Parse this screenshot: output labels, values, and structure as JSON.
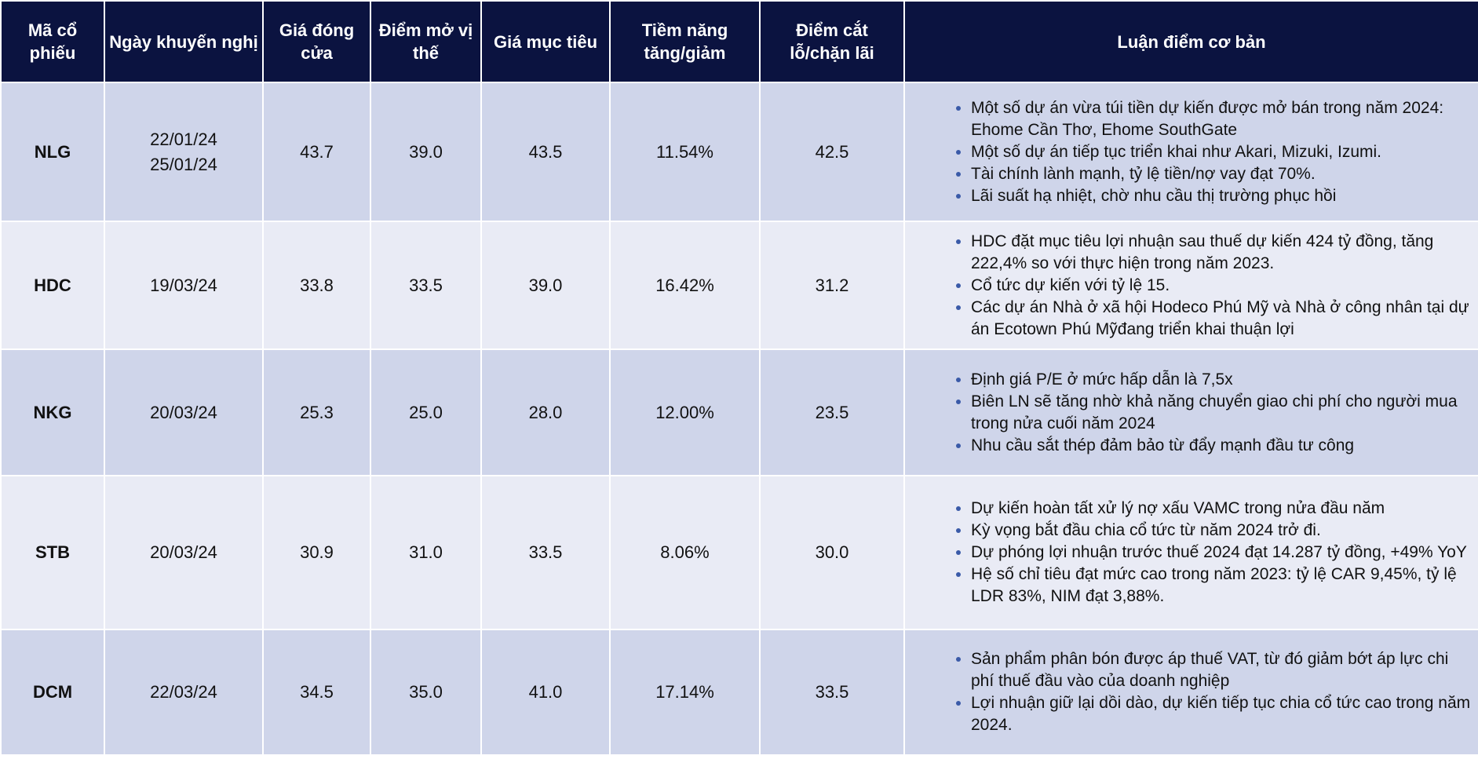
{
  "table": {
    "header": [
      "Mã cổ phiếu",
      "Ngày khuyến nghị",
      "Giá đóng cửa",
      "Điểm mở vị thế",
      "Giá mục tiêu",
      "Tiềm năng tăng/giảm",
      "Điểm cắt lỗ/chặn lãi",
      "Luận điểm cơ bản"
    ],
    "rows": [
      [
        "NLG",
        [
          "22/01/24",
          "25/01/24"
        ],
        "43.7",
        "39.0",
        "43.5",
        "11.54%",
        "42.5",
        [
          "Một số dự án vừa túi tiền dự kiến được mở bán trong năm 2024: Ehome Cần Thơ, Ehome SouthGate",
          "Một số dự án tiếp tục triển khai như Akari, Mizuki, Izumi.",
          "Tài chính lành mạnh, tỷ lệ tiền/nợ vay đạt 70%.",
          "Lãi suất hạ nhiệt, chờ nhu cầu thị trường phục hồi"
        ]
      ],
      [
        "HDC",
        [
          "19/03/24"
        ],
        "33.8",
        "33.5",
        "39.0",
        "16.42%",
        "31.2",
        [
          "HDC đặt mục tiêu lợi nhuận sau thuế dự kiến 424 tỷ đồng, tăng 222,4% so với thực hiện trong năm 2023.",
          "Cổ tức dự kiến với tỷ lệ 15.",
          "Các dự án Nhà ở xã hội Hodeco Phú Mỹ và Nhà ở công nhân tại dự án Ecotown Phú Mỹđang triển khai thuận lợi"
        ]
      ],
      [
        "NKG",
        [
          "20/03/24"
        ],
        "25.3",
        "25.0",
        "28.0",
        "12.00%",
        "23.5",
        [
          "Định giá P/E ở mức hấp dẫn là 7,5x",
          "Biên LN sẽ tăng nhờ khả năng chuyển giao chi phí cho người mua trong nửa cuối năm 2024",
          "Nhu cầu sắt thép đảm bảo từ đẩy mạnh đầu tư công"
        ]
      ],
      [
        "STB",
        [
          "20/03/24"
        ],
        "30.9",
        "31.0",
        "33.5",
        "8.06%",
        "30.0",
        [
          "Dự kiến hoàn tất xử lý nợ xấu VAMC trong nửa đầu năm",
          "Kỳ vọng bắt đầu chia cổ tức từ năm 2024 trở đi.",
          "Dự phóng lợi nhuận trước thuế 2024 đạt 14.287 tỷ đồng, +49% YoY",
          "Hệ số chỉ tiêu đạt mức cao trong năm 2023: tỷ lệ CAR 9,45%, tỷ lệ LDR 83%, NIM đạt 3,88%."
        ]
      ],
      [
        "DCM",
        [
          "22/03/24"
        ],
        "34.5",
        "35.0",
        "41.0",
        "17.14%",
        "33.5",
        [
          "Sản phẩm phân bón được áp thuế VAT, từ đó giảm bớt áp lực chi phí thuế đầu vào của doanh nghiệp",
          "Lợi nhuận giữ lại dồi dào, dự kiến tiếp tục chia cổ tức cao trong năm 2024."
        ]
      ]
    ]
  }
}
